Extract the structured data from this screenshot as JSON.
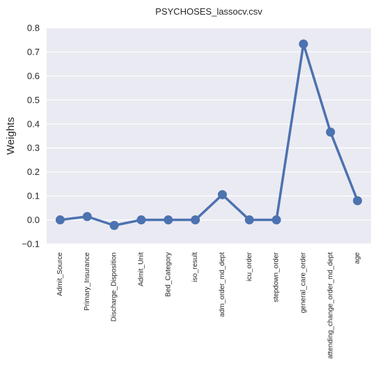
{
  "chart_data": {
    "type": "line",
    "title": "PSYCHOSES_lassocv.csv",
    "xlabel": "",
    "ylabel": "Weights",
    "categories": [
      "Admit_Source",
      "Primary_Insurance",
      "Discharge_Disposition",
      "Admit_Unit",
      "Bed_Category",
      "iso_result",
      "adm_order_md_dept",
      "icu_order",
      "stepdown_order",
      "general_care_order",
      "attending_change_order_md_dept",
      "age"
    ],
    "values": [
      0.0,
      0.014,
      -0.023,
      0.0,
      0.0,
      0.0,
      0.105,
      0.0,
      0.0,
      0.733,
      0.366,
      0.08
    ],
    "ylim": [
      -0.1,
      0.8
    ],
    "yticks": [
      -0.1,
      0.0,
      0.1,
      0.2,
      0.3,
      0.4,
      0.5,
      0.6,
      0.7,
      0.8
    ],
    "ytick_labels": [
      "−0.1",
      "0.0",
      "0.1",
      "0.2",
      "0.3",
      "0.4",
      "0.5",
      "0.6",
      "0.7",
      "0.8"
    ],
    "grid": true,
    "legend": "none",
    "colors": {
      "line": "#4c72b0",
      "background": "#eaeaf2",
      "grid": "#ffffff",
      "text": "#262626"
    }
  }
}
